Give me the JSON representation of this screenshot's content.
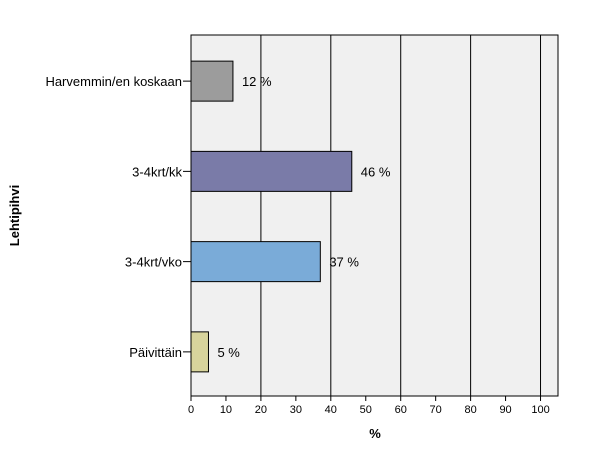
{
  "chart_data": {
    "type": "bar",
    "orientation": "horizontal",
    "title": "",
    "xlabel": "%",
    "ylabel": "Lehtipihvi",
    "xlim": [
      0,
      105
    ],
    "xticks": [
      0,
      10,
      20,
      30,
      40,
      50,
      60,
      70,
      80,
      90,
      100
    ],
    "grid": "vertical lines at 20, 40, 60, 80, 100",
    "categories": [
      "Harvemmin/en koskaan",
      "3-4krt/kk",
      "3-4krt/vko",
      "Päivittäin"
    ],
    "values": [
      12,
      46,
      37,
      5
    ],
    "value_labels": [
      "12 %",
      "46 %",
      "37 %",
      "5 %"
    ],
    "colors": [
      "#9c9c9c",
      "#7a7ba8",
      "#7aabd8",
      "#d8d49c"
    ],
    "plot_background": "#f0f0f0"
  }
}
